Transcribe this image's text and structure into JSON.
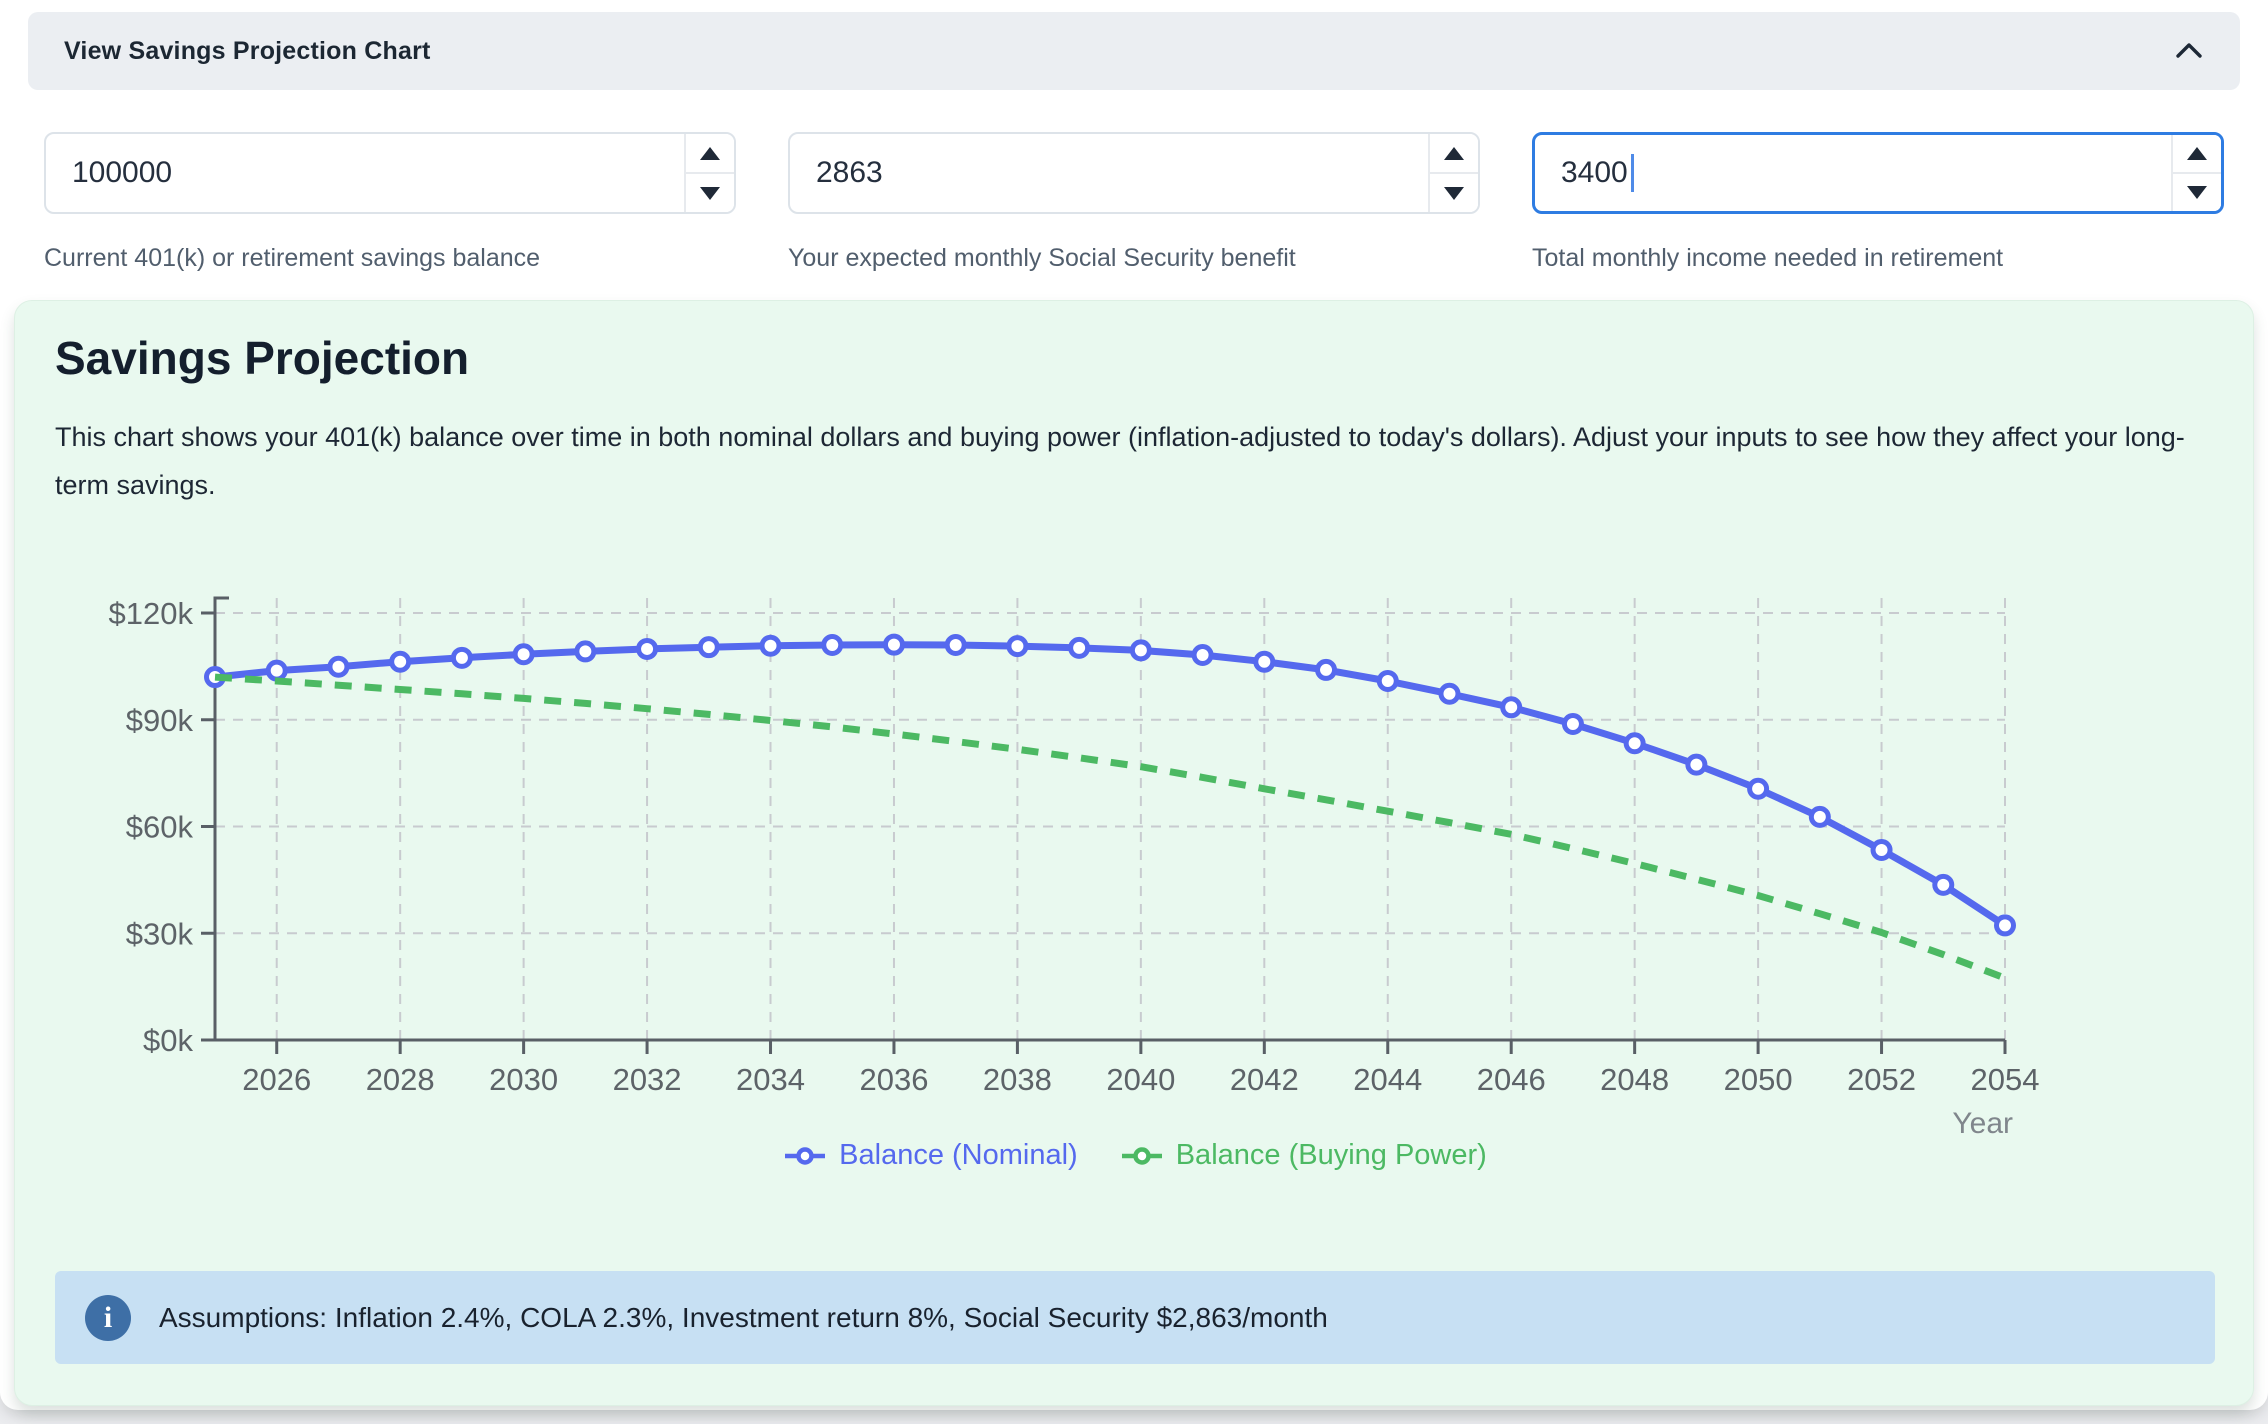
{
  "header": {
    "title": "View Savings Projection Chart"
  },
  "inputs": [
    {
      "value": "100000",
      "label": "Current 401(k) or retirement savings balance"
    },
    {
      "value": "2863",
      "label": "Your expected monthly Social Security benefit"
    },
    {
      "value": "3400",
      "label": "Total monthly income needed in retirement"
    }
  ],
  "panel": {
    "title": "Savings Projection",
    "description": "This chart shows your 401(k) balance over time in both nominal dollars and buying power (inflation-adjusted to today's dollars). Adjust your inputs to see how they affect your long-term savings.",
    "assumptions": "Assumptions: Inflation 2.4%, COLA 2.3%, Investment return 8%, Social Security $2,863/month"
  },
  "colors": {
    "nominal_line": "#5569ee",
    "buying_power_line": "#4cb963",
    "grid": "#c8cbcf",
    "axis": "#595f66",
    "tick_text": "#5d6368",
    "year_label_text": "#80868c",
    "focused_input_border": "#2e7ce2",
    "info_bar_bg": "#c7e0f3",
    "info_icon_bg": "#3e6fa6",
    "panel_bg": "#e9f9ef"
  },
  "chart_data": {
    "type": "line",
    "x": [
      2025,
      2026,
      2027,
      2028,
      2029,
      2030,
      2031,
      2032,
      2033,
      2034,
      2035,
      2036,
      2037,
      2038,
      2039,
      2040,
      2041,
      2042,
      2043,
      2044,
      2045,
      2046,
      2047,
      2048,
      2049,
      2050,
      2051,
      2052,
      2053,
      2054
    ],
    "series": [
      {
        "name": "Balance (Nominal)",
        "color": "#5569ee",
        "style": "solid",
        "markers": true,
        "values_k": [
          102.0,
          103.8,
          104.9,
          106.3,
          107.4,
          108.4,
          109.2,
          109.9,
          110.4,
          110.8,
          111.0,
          111.1,
          111.0,
          110.7,
          110.2,
          109.5,
          108.2,
          106.3,
          104.0,
          100.9,
          97.3,
          93.5,
          88.8,
          83.4,
          77.4,
          70.6,
          62.7,
          53.4,
          43.6,
          32.2
        ]
      },
      {
        "name": "Balance (Buying Power)",
        "color": "#4cb963",
        "style": "dashed",
        "markers": false,
        "values_k": [
          102.0,
          100.9,
          99.7,
          98.5,
          97.3,
          96.0,
          94.6,
          93.1,
          91.5,
          89.8,
          88.0,
          86.0,
          83.9,
          81.7,
          79.3,
          76.8,
          73.8,
          70.6,
          67.5,
          64.3,
          61.1,
          57.8,
          53.8,
          49.6,
          45.2,
          40.6,
          35.5,
          30.2,
          24.0,
          17.4
        ]
      }
    ],
    "y_ticks": [
      {
        "value_k": 0,
        "label": "$0k"
      },
      {
        "value_k": 30,
        "label": "$30k"
      },
      {
        "value_k": 60,
        "label": "$60k"
      },
      {
        "value_k": 90,
        "label": "$90k"
      },
      {
        "value_k": 120,
        "label": "$120k"
      }
    ],
    "x_tick_years": [
      2026,
      2028,
      2030,
      2032,
      2034,
      2036,
      2038,
      2040,
      2042,
      2044,
      2046,
      2048,
      2050,
      2052,
      2054
    ],
    "xlabel": "Year",
    "ylim_k": [
      0,
      124
    ],
    "grid": true,
    "legend_position": "bottom"
  }
}
